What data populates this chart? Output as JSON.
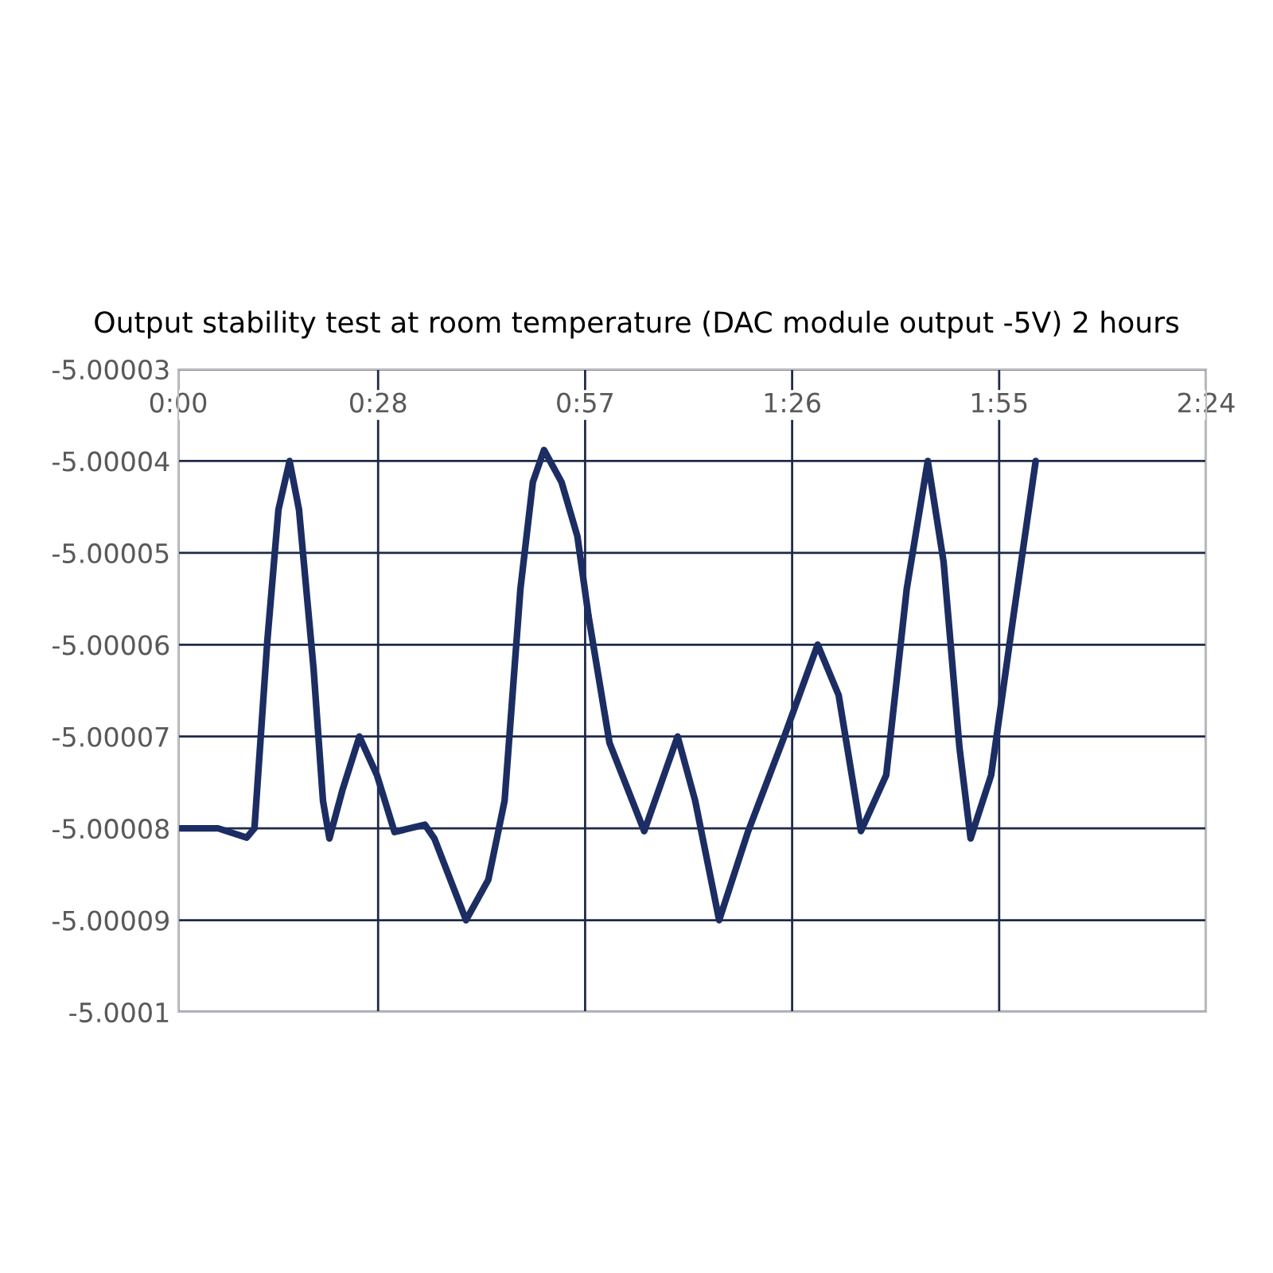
{
  "chart_data": {
    "type": "line",
    "title": "Output stability test at room temperature (DAC module output -5V) 2 hours",
    "x": [
      0.004,
      0.093,
      0.16,
      0.178,
      0.208,
      0.234,
      0.26,
      0.282,
      0.316,
      0.338,
      0.353,
      0.383,
      0.423,
      0.464,
      0.505,
      0.576,
      0.598,
      0.672,
      0.724,
      0.762,
      0.799,
      0.828,
      0.854,
      0.895,
      0.932,
      0.958,
      1.007,
      1.088,
      1.166,
      1.207,
      1.263,
      1.33,
      1.415,
      1.493,
      1.542,
      1.594,
      1.653,
      1.701,
      1.75,
      1.787,
      1.824,
      1.85,
      1.898,
      1.95,
      2.002
    ],
    "series": [
      {
        "color": "#1b2d63",
        "values": [
          -5.00008,
          -5.00008,
          -5.000081,
          -5.00008,
          -5.0000596,
          -5.0000453,
          -5.00004,
          -5.0000453,
          -5.0000626,
          -5.000077,
          -5.0000811,
          -5.0000759,
          -5.00007,
          -5.0000742,
          -5.0000804,
          -5.0000796,
          -5.0000811,
          -5.00009,
          -5.0000856,
          -5.000077,
          -5.0000539,
          -5.0000423,
          -5.0000388,
          -5.0000423,
          -5.0000482,
          -5.0000569,
          -5.0000707,
          -5.0000803,
          -5.00007,
          -5.000077,
          -5.00009,
          -5.0000804,
          -5.00007,
          -5.00006,
          -5.0000655,
          -5.0000803,
          -5.0000742,
          -5.0000539,
          -5.00004,
          -5.000051,
          -5.0000712,
          -5.0000811,
          -5.0000742,
          -5.0000569,
          -5.00004
        ]
      }
    ],
    "xlim": [
      0,
      2.4
    ],
    "xticks": [
      {
        "value": 0,
        "label": "0:00"
      },
      {
        "value": 0.4667,
        "label": "0:28"
      },
      {
        "value": 0.95,
        "label": "0:57"
      },
      {
        "value": 1.4333,
        "label": "1:26"
      },
      {
        "value": 1.9167,
        "label": "1:55"
      },
      {
        "value": 2.4,
        "label": "2:24"
      }
    ],
    "ylim": [
      -5.0001,
      -5.00003
    ],
    "yticks": [
      {
        "value": -5.0001,
        "label": "-5.0001"
      },
      {
        "value": -5.00009,
        "label": "-5.00009"
      },
      {
        "value": -5.00008,
        "label": "-5.00008"
      },
      {
        "value": -5.00007,
        "label": "-5.00007"
      },
      {
        "value": -5.00006,
        "label": "-5.00006"
      },
      {
        "value": -5.00005,
        "label": "-5.00005"
      },
      {
        "value": -5.00004,
        "label": "-5.00004"
      },
      {
        "value": -5.00003,
        "label": "-5.00003"
      }
    ],
    "grid": true,
    "marker": "none",
    "line_style": "solid"
  }
}
